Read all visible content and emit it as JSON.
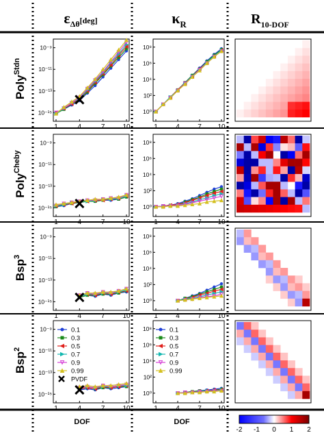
{
  "headers": {
    "col1": {
      "main": "ε",
      "sub": "Δθ",
      "unit": "[deg]"
    },
    "col2": {
      "main": "κ",
      "sub": "R"
    },
    "col3": {
      "main": "R",
      "sub": "10-DOF"
    }
  },
  "rows": [
    {
      "base": "Poly",
      "sup": "Stdn"
    },
    {
      "base": "Poly",
      "sup": "Cheby"
    },
    {
      "base": "Bsp",
      "sup": "3"
    },
    {
      "base": "Bsp",
      "sup": "2"
    }
  ],
  "footer": {
    "dof1": "DOF",
    "dof2": "DOF"
  },
  "colorbar": {
    "min": -2,
    "max": 2,
    "ticks": [
      "-2",
      "-1",
      "0",
      "1",
      "2"
    ],
    "low_color": "#0000ff",
    "mid_color": "#ffffff",
    "high_color": "#ff0000",
    "dark_high": "#7a0000"
  },
  "axes": {
    "x_ticks": [
      "1",
      "4",
      "7",
      "10"
    ],
    "eps_ticks": [
      "10⁻⁹",
      "10⁻¹¹",
      "10⁻¹³",
      "10⁻¹⁵"
    ],
    "kappa_ticks": [
      "10⁸",
      "10⁶",
      "10⁴",
      "10²",
      "10⁰"
    ]
  },
  "legend": {
    "items": [
      {
        "label": "0.1",
        "color": "#1f3fd6",
        "marker": "circle"
      },
      {
        "label": "0.3",
        "color": "#1a8a1a",
        "marker": "square"
      },
      {
        "label": "0.5",
        "color": "#e0201c",
        "marker": "triangle-left"
      },
      {
        "label": "0.7",
        "color": "#14b8b0",
        "marker": "triangle-right"
      },
      {
        "label": "0.9",
        "color": "#d63fd6",
        "marker": "triangle-down"
      },
      {
        "label": "0.99",
        "color": "#d4c020",
        "marker": "triangle-up"
      }
    ],
    "pvdf_label": "PVDF"
  },
  "chart_data": {
    "type": "line",
    "x": [
      1,
      2,
      3,
      4,
      5,
      6,
      7,
      8,
      9,
      10
    ],
    "series_names": [
      "0.1",
      "0.3",
      "0.5",
      "0.7",
      "0.9",
      "0.99"
    ],
    "epsilon_ylim_log10": [
      -15.8,
      -8.2
    ],
    "kappa_ylim_log10": [
      -1.2,
      9.0
    ],
    "pvdf_marker": {
      "x": 4,
      "epsilon_log10": [
        -13.8,
        -14.6,
        -14.6,
        -14.6
      ]
    },
    "panels": [
      {
        "row": "PolyStdn",
        "epsilon_log10": [
          [
            -15.0,
            -14.7,
            -14.3,
            -13.9,
            -13.2,
            -12.5,
            -11.7,
            -10.9,
            -10.1,
            -9.3
          ],
          [
            -15.1,
            -14.7,
            -14.2,
            -13.8,
            -13.1,
            -12.3,
            -11.5,
            -10.7,
            -9.9,
            -9.1
          ],
          [
            -15.0,
            -14.6,
            -14.2,
            -13.7,
            -13.0,
            -12.2,
            -11.4,
            -10.6,
            -9.7,
            -8.9
          ],
          [
            -15.1,
            -14.6,
            -14.1,
            -13.7,
            -12.9,
            -12.1,
            -11.3,
            -10.4,
            -9.6,
            -8.7
          ],
          [
            -15.0,
            -14.6,
            -14.1,
            -13.6,
            -12.8,
            -12.0,
            -11.2,
            -10.3,
            -9.4,
            -8.5
          ],
          [
            -15.1,
            -14.5,
            -14.0,
            -13.5,
            -12.7,
            -11.9,
            -11.0,
            -10.1,
            -9.2,
            -8.3
          ]
        ],
        "kappa_log10": [
          [
            0.0,
            0.9,
            1.8,
            2.7,
            3.6,
            4.5,
            5.4,
            6.3,
            7.1,
            7.8
          ],
          [
            0.0,
            0.9,
            1.8,
            2.7,
            3.6,
            4.5,
            5.3,
            6.2,
            7.0,
            7.7
          ],
          [
            0.0,
            0.9,
            1.8,
            2.7,
            3.5,
            4.4,
            5.3,
            6.1,
            6.9,
            7.6
          ],
          [
            0.0,
            0.9,
            1.8,
            2.6,
            3.5,
            4.4,
            5.2,
            6.1,
            6.9,
            7.6
          ],
          [
            0.0,
            0.9,
            1.7,
            2.6,
            3.5,
            4.3,
            5.2,
            6.0,
            6.8,
            7.5
          ],
          [
            0.0,
            0.9,
            1.7,
            2.6,
            3.4,
            4.3,
            5.1,
            6.0,
            6.8,
            7.5
          ]
        ]
      },
      {
        "row": "PolyCheby",
        "epsilon_log10": [
          [
            -14.9,
            -14.8,
            -14.6,
            -14.5,
            -14.4,
            -14.4,
            -14.3,
            -14.3,
            -14.2,
            -14.0
          ],
          [
            -14.9,
            -14.7,
            -14.6,
            -14.5,
            -14.4,
            -14.4,
            -14.3,
            -14.2,
            -14.2,
            -14.0
          ],
          [
            -14.8,
            -14.7,
            -14.6,
            -14.4,
            -14.4,
            -14.3,
            -14.3,
            -14.2,
            -14.1,
            -13.9
          ],
          [
            -14.8,
            -14.7,
            -14.5,
            -14.4,
            -14.4,
            -14.3,
            -14.2,
            -14.2,
            -14.1,
            -13.9
          ],
          [
            -14.8,
            -14.6,
            -14.5,
            -14.4,
            -14.3,
            -14.3,
            -14.2,
            -14.1,
            -14.1,
            -13.8
          ],
          [
            -14.7,
            -14.6,
            -14.5,
            -14.4,
            -14.3,
            -14.2,
            -14.2,
            -14.1,
            -14.0,
            -13.8
          ]
        ],
        "kappa_log10": [
          [
            0.0,
            0.1,
            0.2,
            0.4,
            0.7,
            1.0,
            1.4,
            1.8,
            2.2,
            2.5
          ],
          [
            0.0,
            0.1,
            0.2,
            0.3,
            0.6,
            0.9,
            1.2,
            1.6,
            1.9,
            2.2
          ],
          [
            0.0,
            0.1,
            0.2,
            0.3,
            0.5,
            0.8,
            1.1,
            1.4,
            1.7,
            1.9
          ],
          [
            0.0,
            0.1,
            0.1,
            0.2,
            0.4,
            0.6,
            0.9,
            1.1,
            1.4,
            1.6
          ],
          [
            0.0,
            0.1,
            0.1,
            0.2,
            0.3,
            0.5,
            0.7,
            0.9,
            1.1,
            1.3
          ],
          [
            0.0,
            0.0,
            0.1,
            0.1,
            0.2,
            0.3,
            0.4,
            0.6,
            0.7,
            0.8
          ]
        ]
      },
      {
        "row": "Bsp3",
        "epsilon_log10": [
          [
            null,
            null,
            null,
            -14.6,
            -14.4,
            -14.5,
            -14.3,
            -14.4,
            -14.2,
            -14.1
          ],
          [
            null,
            null,
            null,
            -14.6,
            -14.4,
            -14.4,
            -14.3,
            -14.3,
            -14.2,
            -14.0
          ],
          [
            null,
            null,
            null,
            -14.5,
            -14.3,
            -14.4,
            -14.2,
            -14.3,
            -14.1,
            -14.0
          ],
          [
            null,
            null,
            null,
            -14.5,
            -14.3,
            -14.3,
            -14.2,
            -14.2,
            -14.1,
            -13.9
          ],
          [
            null,
            null,
            null,
            -14.4,
            -14.2,
            -14.3,
            -14.1,
            -14.2,
            -14.0,
            -13.8
          ],
          [
            null,
            null,
            null,
            -14.4,
            -14.2,
            -14.2,
            -14.1,
            -14.1,
            -14.0,
            -13.8
          ]
        ],
        "kappa_log10": [
          [
            null,
            null,
            null,
            0.0,
            0.3,
            0.6,
            0.9,
            1.3,
            1.7,
            2.1
          ],
          [
            null,
            null,
            null,
            0.0,
            0.3,
            0.5,
            0.8,
            1.1,
            1.4,
            1.7
          ],
          [
            null,
            null,
            null,
            0.0,
            0.2,
            0.4,
            0.7,
            0.9,
            1.2,
            1.4
          ],
          [
            null,
            null,
            null,
            0.0,
            0.2,
            0.3,
            0.5,
            0.7,
            0.9,
            1.1
          ],
          [
            null,
            null,
            null,
            0.0,
            0.1,
            0.2,
            0.4,
            0.5,
            0.6,
            0.8
          ],
          [
            null,
            null,
            null,
            0.0,
            0.1,
            0.2,
            0.3,
            0.4,
            0.5,
            0.6
          ]
        ]
      },
      {
        "row": "Bsp2",
        "epsilon_log10": [
          [
            null,
            null,
            null,
            -14.6,
            -14.5,
            -14.6,
            -14.4,
            -14.5,
            -14.4,
            -14.3
          ],
          [
            null,
            null,
            null,
            -14.5,
            -14.4,
            -14.5,
            -14.4,
            -14.4,
            -14.3,
            -14.3
          ],
          [
            null,
            null,
            null,
            -14.5,
            -14.4,
            -14.5,
            -14.3,
            -14.4,
            -14.3,
            -14.2
          ],
          [
            null,
            null,
            null,
            -14.4,
            -14.3,
            -14.4,
            -14.3,
            -14.3,
            -14.2,
            -14.2
          ],
          [
            null,
            null,
            null,
            -14.4,
            -14.3,
            -14.4,
            -14.2,
            -14.3,
            -14.2,
            -14.1
          ],
          [
            null,
            null,
            null,
            -14.3,
            -14.2,
            -14.3,
            -14.2,
            -14.2,
            -14.1,
            -14.0
          ]
        ],
        "kappa_log10": [
          [
            null,
            null,
            null,
            0.0,
            0.1,
            0.2,
            0.3,
            0.4,
            0.5,
            0.6
          ],
          [
            null,
            null,
            null,
            0.0,
            0.1,
            0.2,
            0.3,
            0.3,
            0.4,
            0.5
          ],
          [
            null,
            null,
            null,
            0.0,
            0.1,
            0.1,
            0.2,
            0.3,
            0.4,
            0.4
          ],
          [
            null,
            null,
            null,
            0.0,
            0.1,
            0.1,
            0.2,
            0.3,
            0.3,
            0.4
          ],
          [
            null,
            null,
            null,
            0.0,
            0.1,
            0.1,
            0.2,
            0.2,
            0.3,
            0.3
          ],
          [
            null,
            null,
            null,
            0.0,
            0.0,
            0.1,
            0.1,
            0.2,
            0.2,
            0.3
          ]
        ]
      }
    ]
  }
}
